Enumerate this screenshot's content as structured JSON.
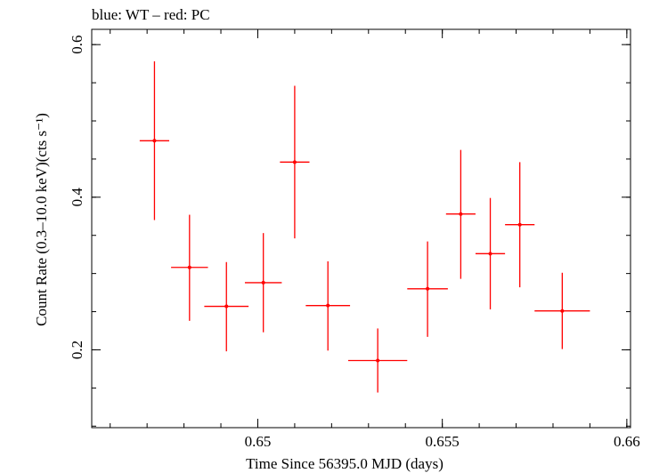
{
  "chart_data": {
    "type": "scatter",
    "title": "blue: WT – red: PC",
    "xlabel": "Time Since 56395.0 MJD (days)",
    "ylabel": "Count Rate (0.3–10.0 keV)(cts s⁻¹)",
    "xlim": [
      0.6455,
      0.6601
    ],
    "ylim": [
      0.098,
      0.62
    ],
    "xticks": [
      {
        "value": 0.65,
        "label": "0.65"
      },
      {
        "value": 0.655,
        "label": "0.655"
      },
      {
        "value": 0.66,
        "label": "0.66"
      }
    ],
    "yticks": [
      {
        "value": 0.2,
        "label": "0.2"
      },
      {
        "value": 0.4,
        "label": "0.4"
      },
      {
        "value": 0.6,
        "label": "0.6"
      }
    ],
    "x_minor_step": 0.001,
    "y_minor_step": 0.05,
    "grid": false,
    "series": [
      {
        "color": "#ff0000",
        "points": [
          {
            "x": 0.6472,
            "xerr": 0.0004,
            "y": 0.474,
            "ylo": 0.37,
            "yhi": 0.578
          },
          {
            "x": 0.64815,
            "xerr": 0.0005,
            "y": 0.308,
            "ylo": 0.238,
            "yhi": 0.377
          },
          {
            "x": 0.64915,
            "xerr": 0.0006,
            "y": 0.257,
            "ylo": 0.198,
            "yhi": 0.315
          },
          {
            "x": 0.65015,
            "xerr": 0.0005,
            "y": 0.288,
            "ylo": 0.223,
            "yhi": 0.353
          },
          {
            "x": 0.651,
            "xerr": 0.0004,
            "y": 0.446,
            "ylo": 0.346,
            "yhi": 0.546
          },
          {
            "x": 0.6519,
            "xerr": 0.0006,
            "y": 0.258,
            "ylo": 0.199,
            "yhi": 0.316
          },
          {
            "x": 0.65325,
            "xerr": 0.0008,
            "y": 0.186,
            "ylo": 0.144,
            "yhi": 0.228
          },
          {
            "x": 0.6546,
            "xerr": 0.00055,
            "y": 0.28,
            "ylo": 0.217,
            "yhi": 0.342
          },
          {
            "x": 0.6555,
            "xerr": 0.0004,
            "y": 0.378,
            "ylo": 0.293,
            "yhi": 0.462
          },
          {
            "x": 0.6563,
            "xerr": 0.0004,
            "y": 0.326,
            "ylo": 0.253,
            "yhi": 0.399
          },
          {
            "x": 0.6571,
            "xerr": 0.0004,
            "y": 0.364,
            "ylo": 0.282,
            "yhi": 0.446
          },
          {
            "x": 0.65825,
            "xerr": 0.00075,
            "y": 0.251,
            "ylo": 0.201,
            "yhi": 0.301
          }
        ]
      }
    ]
  }
}
